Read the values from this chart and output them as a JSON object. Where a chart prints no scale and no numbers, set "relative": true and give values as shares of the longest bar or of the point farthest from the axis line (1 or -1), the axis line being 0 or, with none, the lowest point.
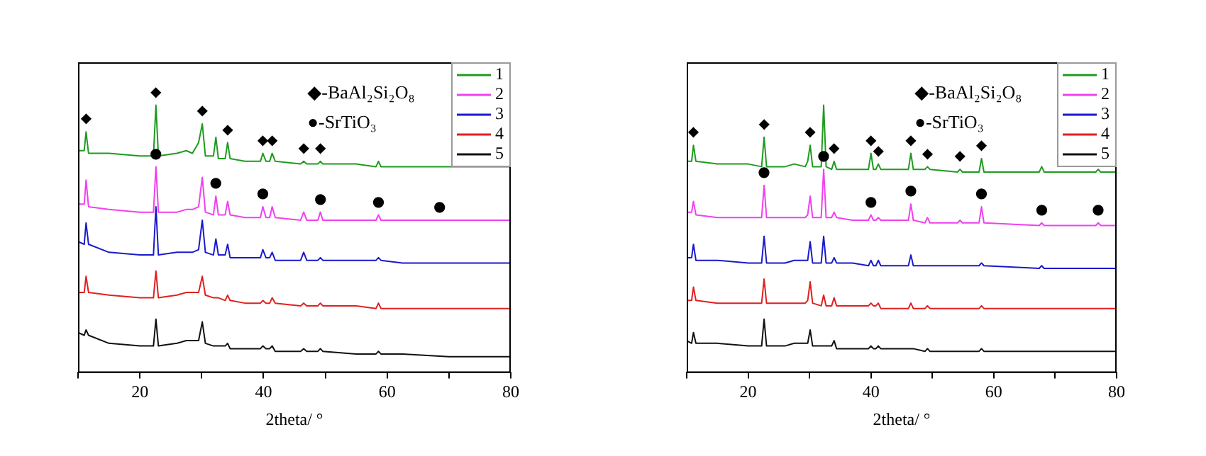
{
  "chart_data": [
    {
      "type": "line",
      "relative": true,
      "xlabel": "2theta/ °",
      "xlim": [
        10,
        80
      ],
      "xticks": [
        {
          "value": 10,
          "label": null
        },
        20,
        {
          "value": 30,
          "label": null
        },
        40,
        {
          "value": 50,
          "label": null
        },
        60,
        {
          "value": 70,
          "label": null
        },
        80
      ],
      "tick_labels": "x",
      "legend": "top right",
      "x": [
        10,
        11,
        11.3,
        11.7,
        15,
        20,
        22.2,
        22.6,
        23,
        26,
        27.5,
        28.5,
        29.5,
        30.1,
        30.6,
        31.9,
        32.3,
        32.7,
        33.8,
        34.2,
        34.6,
        37,
        39.5,
        39.9,
        40.4,
        41,
        41.4,
        41.9,
        46,
        46.5,
        47,
        48.8,
        49.2,
        49.6,
        55,
        58.2,
        58.6,
        59,
        62.5,
        70,
        80
      ],
      "series": [
        {
          "name": "1",
          "color": "#1e9b1e",
          "values": [
            0.83,
            0.83,
            0.9,
            0.82,
            0.82,
            0.81,
            0.81,
            1,
            0.81,
            0.82,
            0.83,
            0.82,
            0.86,
            0.93,
            0.81,
            0.81,
            0.88,
            0.8,
            0.8,
            0.86,
            0.8,
            0.79,
            0.79,
            0.82,
            0.79,
            0.79,
            0.82,
            0.79,
            0.78,
            0.79,
            0.78,
            0.78,
            0.79,
            0.78,
            0.78,
            0.77,
            0.79,
            0.77,
            0.77,
            0.77,
            0.77
          ]
        },
        {
          "name": "2",
          "color": "#f040f0",
          "values": [
            0.63,
            0.63,
            0.72,
            0.62,
            0.61,
            0.6,
            0.6,
            0.77,
            0.6,
            0.6,
            0.61,
            0.61,
            0.62,
            0.73,
            0.6,
            0.59,
            0.66,
            0.59,
            0.59,
            0.64,
            0.59,
            0.58,
            0.58,
            0.62,
            0.58,
            0.58,
            0.62,
            0.58,
            0.57,
            0.6,
            0.57,
            0.57,
            0.6,
            0.57,
            0.57,
            0.57,
            0.59,
            0.57,
            0.57,
            0.57,
            0.57
          ]
        },
        {
          "name": "3",
          "color": "#1a1acc",
          "values": [
            0.49,
            0.48,
            0.56,
            0.48,
            0.45,
            0.44,
            0.44,
            0.62,
            0.44,
            0.45,
            0.45,
            0.45,
            0.46,
            0.57,
            0.45,
            0.44,
            0.5,
            0.44,
            0.44,
            0.48,
            0.43,
            0.43,
            0.43,
            0.46,
            0.43,
            0.43,
            0.45,
            0.42,
            0.42,
            0.45,
            0.42,
            0.42,
            0.43,
            0.42,
            0.42,
            0.42,
            0.43,
            0.42,
            0.41,
            0.41,
            0.41
          ]
        },
        {
          "name": "4",
          "color": "#e02020",
          "values": [
            0.3,
            0.3,
            0.36,
            0.3,
            0.29,
            0.28,
            0.28,
            0.38,
            0.28,
            0.29,
            0.3,
            0.3,
            0.3,
            0.36,
            0.29,
            0.28,
            0.28,
            0.28,
            0.27,
            0.29,
            0.27,
            0.26,
            0.26,
            0.27,
            0.26,
            0.26,
            0.28,
            0.26,
            0.25,
            0.26,
            0.25,
            0.25,
            0.26,
            0.25,
            0.25,
            0.24,
            0.26,
            0.24,
            0.24,
            0.24,
            0.24
          ]
        },
        {
          "name": "5",
          "color": "#111111",
          "values": [
            0.15,
            0.14,
            0.16,
            0.14,
            0.11,
            0.1,
            0.1,
            0.2,
            0.1,
            0.11,
            0.12,
            0.12,
            0.12,
            0.19,
            0.11,
            0.1,
            0.1,
            0.1,
            0.1,
            0.11,
            0.09,
            0.09,
            0.09,
            0.1,
            0.09,
            0.09,
            0.1,
            0.08,
            0.08,
            0.09,
            0.08,
            0.08,
            0.09,
            0.08,
            0.07,
            0.07,
            0.08,
            0.07,
            0.07,
            0.06,
            0.06
          ]
        }
      ],
      "annotations": [
        "◆-BaAl₂Si₂O₈",
        "●-SrTiO₃",
        {
          "text": "◆",
          "x": 11.3,
          "y": 0.9
        },
        {
          "text": "◆",
          "x": 22.6,
          "y": 1
        },
        {
          "text": "◆",
          "x": 30.1,
          "y": 0.93
        },
        {
          "text": "◆",
          "x": 34.2,
          "y": 0.86
        },
        {
          "text": "◆",
          "x": 39.9,
          "y": 0.82
        },
        {
          "text": "◆",
          "x": 41.4,
          "y": 0.82
        },
        {
          "text": "◆",
          "x": 46.5,
          "y": 0.79
        },
        {
          "text": "◆",
          "x": 49.2,
          "y": 0.79
        },
        {
          "text": "●",
          "x": 22.6,
          "y": 0.77
        },
        {
          "text": "●",
          "x": 32.3,
          "y": 0.66
        },
        {
          "text": "●",
          "x": 39.9,
          "y": 0.62
        },
        {
          "text": "●",
          "x": 49.2,
          "y": 0.6
        },
        {
          "text": "●",
          "x": 58.6,
          "y": 0.59
        },
        {
          "text": "●",
          "x": 68.5,
          "y": 0.57
        }
      ]
    },
    {
      "type": "line",
      "relative": true,
      "xlabel": "2theta/ °",
      "xlim": [
        10,
        80
      ],
      "xticks": [
        {
          "value": 10,
          "label": null
        },
        20,
        {
          "value": 30,
          "label": null
        },
        40,
        {
          "value": 50,
          "label": null
        },
        60,
        {
          "value": 70,
          "label": null
        },
        80
      ],
      "tick_labels": "x",
      "legend": "top right",
      "x": [
        10,
        10.8,
        11.1,
        11.5,
        15,
        20,
        22.2,
        22.6,
        23,
        26,
        27.5,
        29.3,
        29.7,
        30.1,
        30.5,
        31.9,
        32.3,
        32.7,
        33.6,
        34,
        34.4,
        37,
        39.6,
        40,
        40.4,
        40.8,
        41.2,
        41.6,
        46.1,
        46.5,
        46.9,
        48.8,
        49.2,
        49.6,
        54.1,
        54.5,
        54.9,
        57.6,
        58,
        58.4,
        67.4,
        67.8,
        68.2,
        76.6,
        77,
        77.4,
        80
      ],
      "series": [
        {
          "name": "1",
          "color": "#1e9b1e",
          "values": [
            0.79,
            0.79,
            0.85,
            0.79,
            0.78,
            0.78,
            0.77,
            0.88,
            0.77,
            0.77,
            0.78,
            0.77,
            0.79,
            0.85,
            0.77,
            0.77,
            1,
            0.77,
            0.76,
            0.79,
            0.76,
            0.76,
            0.76,
            0.82,
            0.76,
            0.76,
            0.78,
            0.76,
            0.76,
            0.82,
            0.76,
            0.76,
            0.77,
            0.76,
            0.75,
            0.76,
            0.75,
            0.75,
            0.8,
            0.75,
            0.75,
            0.77,
            0.75,
            0.75,
            0.76,
            0.75,
            0.75
          ]
        },
        {
          "name": "2",
          "color": "#f040f0",
          "values": [
            0.6,
            0.6,
            0.64,
            0.59,
            0.58,
            0.58,
            0.58,
            0.7,
            0.58,
            0.58,
            0.58,
            0.58,
            0.59,
            0.66,
            0.58,
            0.58,
            0.76,
            0.58,
            0.58,
            0.6,
            0.58,
            0.57,
            0.57,
            0.59,
            0.57,
            0.57,
            0.58,
            0.57,
            0.57,
            0.63,
            0.57,
            0.56,
            0.58,
            0.56,
            0.56,
            0.57,
            0.56,
            0.56,
            0.62,
            0.56,
            0.55,
            0.56,
            0.55,
            0.55,
            0.56,
            0.55,
            0.55
          ]
        },
        {
          "name": "3",
          "color": "#1a1acc",
          "values": [
            0.43,
            0.43,
            0.48,
            0.42,
            0.42,
            0.41,
            0.41,
            0.51,
            0.41,
            0.41,
            0.42,
            0.42,
            0.42,
            0.49,
            0.41,
            0.41,
            0.51,
            0.41,
            0.41,
            0.43,
            0.41,
            0.41,
            0.4,
            0.42,
            0.4,
            0.4,
            0.42,
            0.4,
            0.4,
            0.44,
            0.4,
            0.4,
            0.4,
            0.4,
            0.4,
            0.4,
            0.4,
            0.4,
            0.41,
            0.4,
            0.39,
            0.4,
            0.39,
            0.39,
            0.39,
            0.39,
            0.39
          ]
        },
        {
          "name": "4",
          "color": "#e02020",
          "values": [
            0.27,
            0.27,
            0.32,
            0.27,
            0.26,
            0.26,
            0.26,
            0.35,
            0.26,
            0.26,
            0.26,
            0.26,
            0.27,
            0.34,
            0.26,
            0.25,
            0.29,
            0.25,
            0.25,
            0.28,
            0.25,
            0.25,
            0.25,
            0.26,
            0.25,
            0.25,
            0.26,
            0.24,
            0.24,
            0.26,
            0.24,
            0.24,
            0.25,
            0.24,
            0.24,
            0.24,
            0.24,
            0.24,
            0.25,
            0.24,
            0.24,
            0.24,
            0.24,
            0.24,
            0.24,
            0.24,
            0.24
          ]
        },
        {
          "name": "5",
          "color": "#111111",
          "values": [
            0.12,
            0.11,
            0.15,
            0.11,
            0.11,
            0.1,
            0.1,
            0.2,
            0.1,
            0.1,
            0.11,
            0.11,
            0.11,
            0.16,
            0.1,
            0.1,
            0.1,
            0.1,
            0.1,
            0.12,
            0.09,
            0.09,
            0.09,
            0.1,
            0.09,
            0.09,
            0.1,
            0.09,
            0.09,
            0.09,
            0.09,
            0.08,
            0.09,
            0.08,
            0.08,
            0.08,
            0.08,
            0.08,
            0.09,
            0.08,
            0.08,
            0.08,
            0.08,
            0.08,
            0.08,
            0.08,
            0.08
          ]
        }
      ],
      "annotations": [
        "◆-BaAl₂Si₂O₈",
        "●-SrTiO₃",
        {
          "text": "◆",
          "x": 11.1,
          "y": 0.85
        },
        {
          "text": "◆",
          "x": 22.6,
          "y": 0.88
        },
        {
          "text": "◆",
          "x": 30.1,
          "y": 0.85
        },
        {
          "text": "◆",
          "x": 34,
          "y": 0.79
        },
        {
          "text": "◆",
          "x": 40,
          "y": 0.82
        },
        {
          "text": "◆",
          "x": 41.2,
          "y": 0.78
        },
        {
          "text": "◆",
          "x": 46.5,
          "y": 0.82
        },
        {
          "text": "◆",
          "x": 49.2,
          "y": 0.77
        },
        {
          "text": "◆",
          "x": 54.5,
          "y": 0.76
        },
        {
          "text": "◆",
          "x": 58,
          "y": 0.8
        },
        {
          "text": "●",
          "x": 22.6,
          "y": 0.7
        },
        {
          "text": "●",
          "x": 32.3,
          "y": 0.76
        },
        {
          "text": "●",
          "x": 40,
          "y": 0.59
        },
        {
          "text": "●",
          "x": 46.5,
          "y": 0.63
        },
        {
          "text": "●",
          "x": 58,
          "y": 0.62
        },
        {
          "text": "●",
          "x": 67.8,
          "y": 0.56
        },
        {
          "text": "●",
          "x": 77,
          "y": 0.56
        }
      ]
    }
  ]
}
